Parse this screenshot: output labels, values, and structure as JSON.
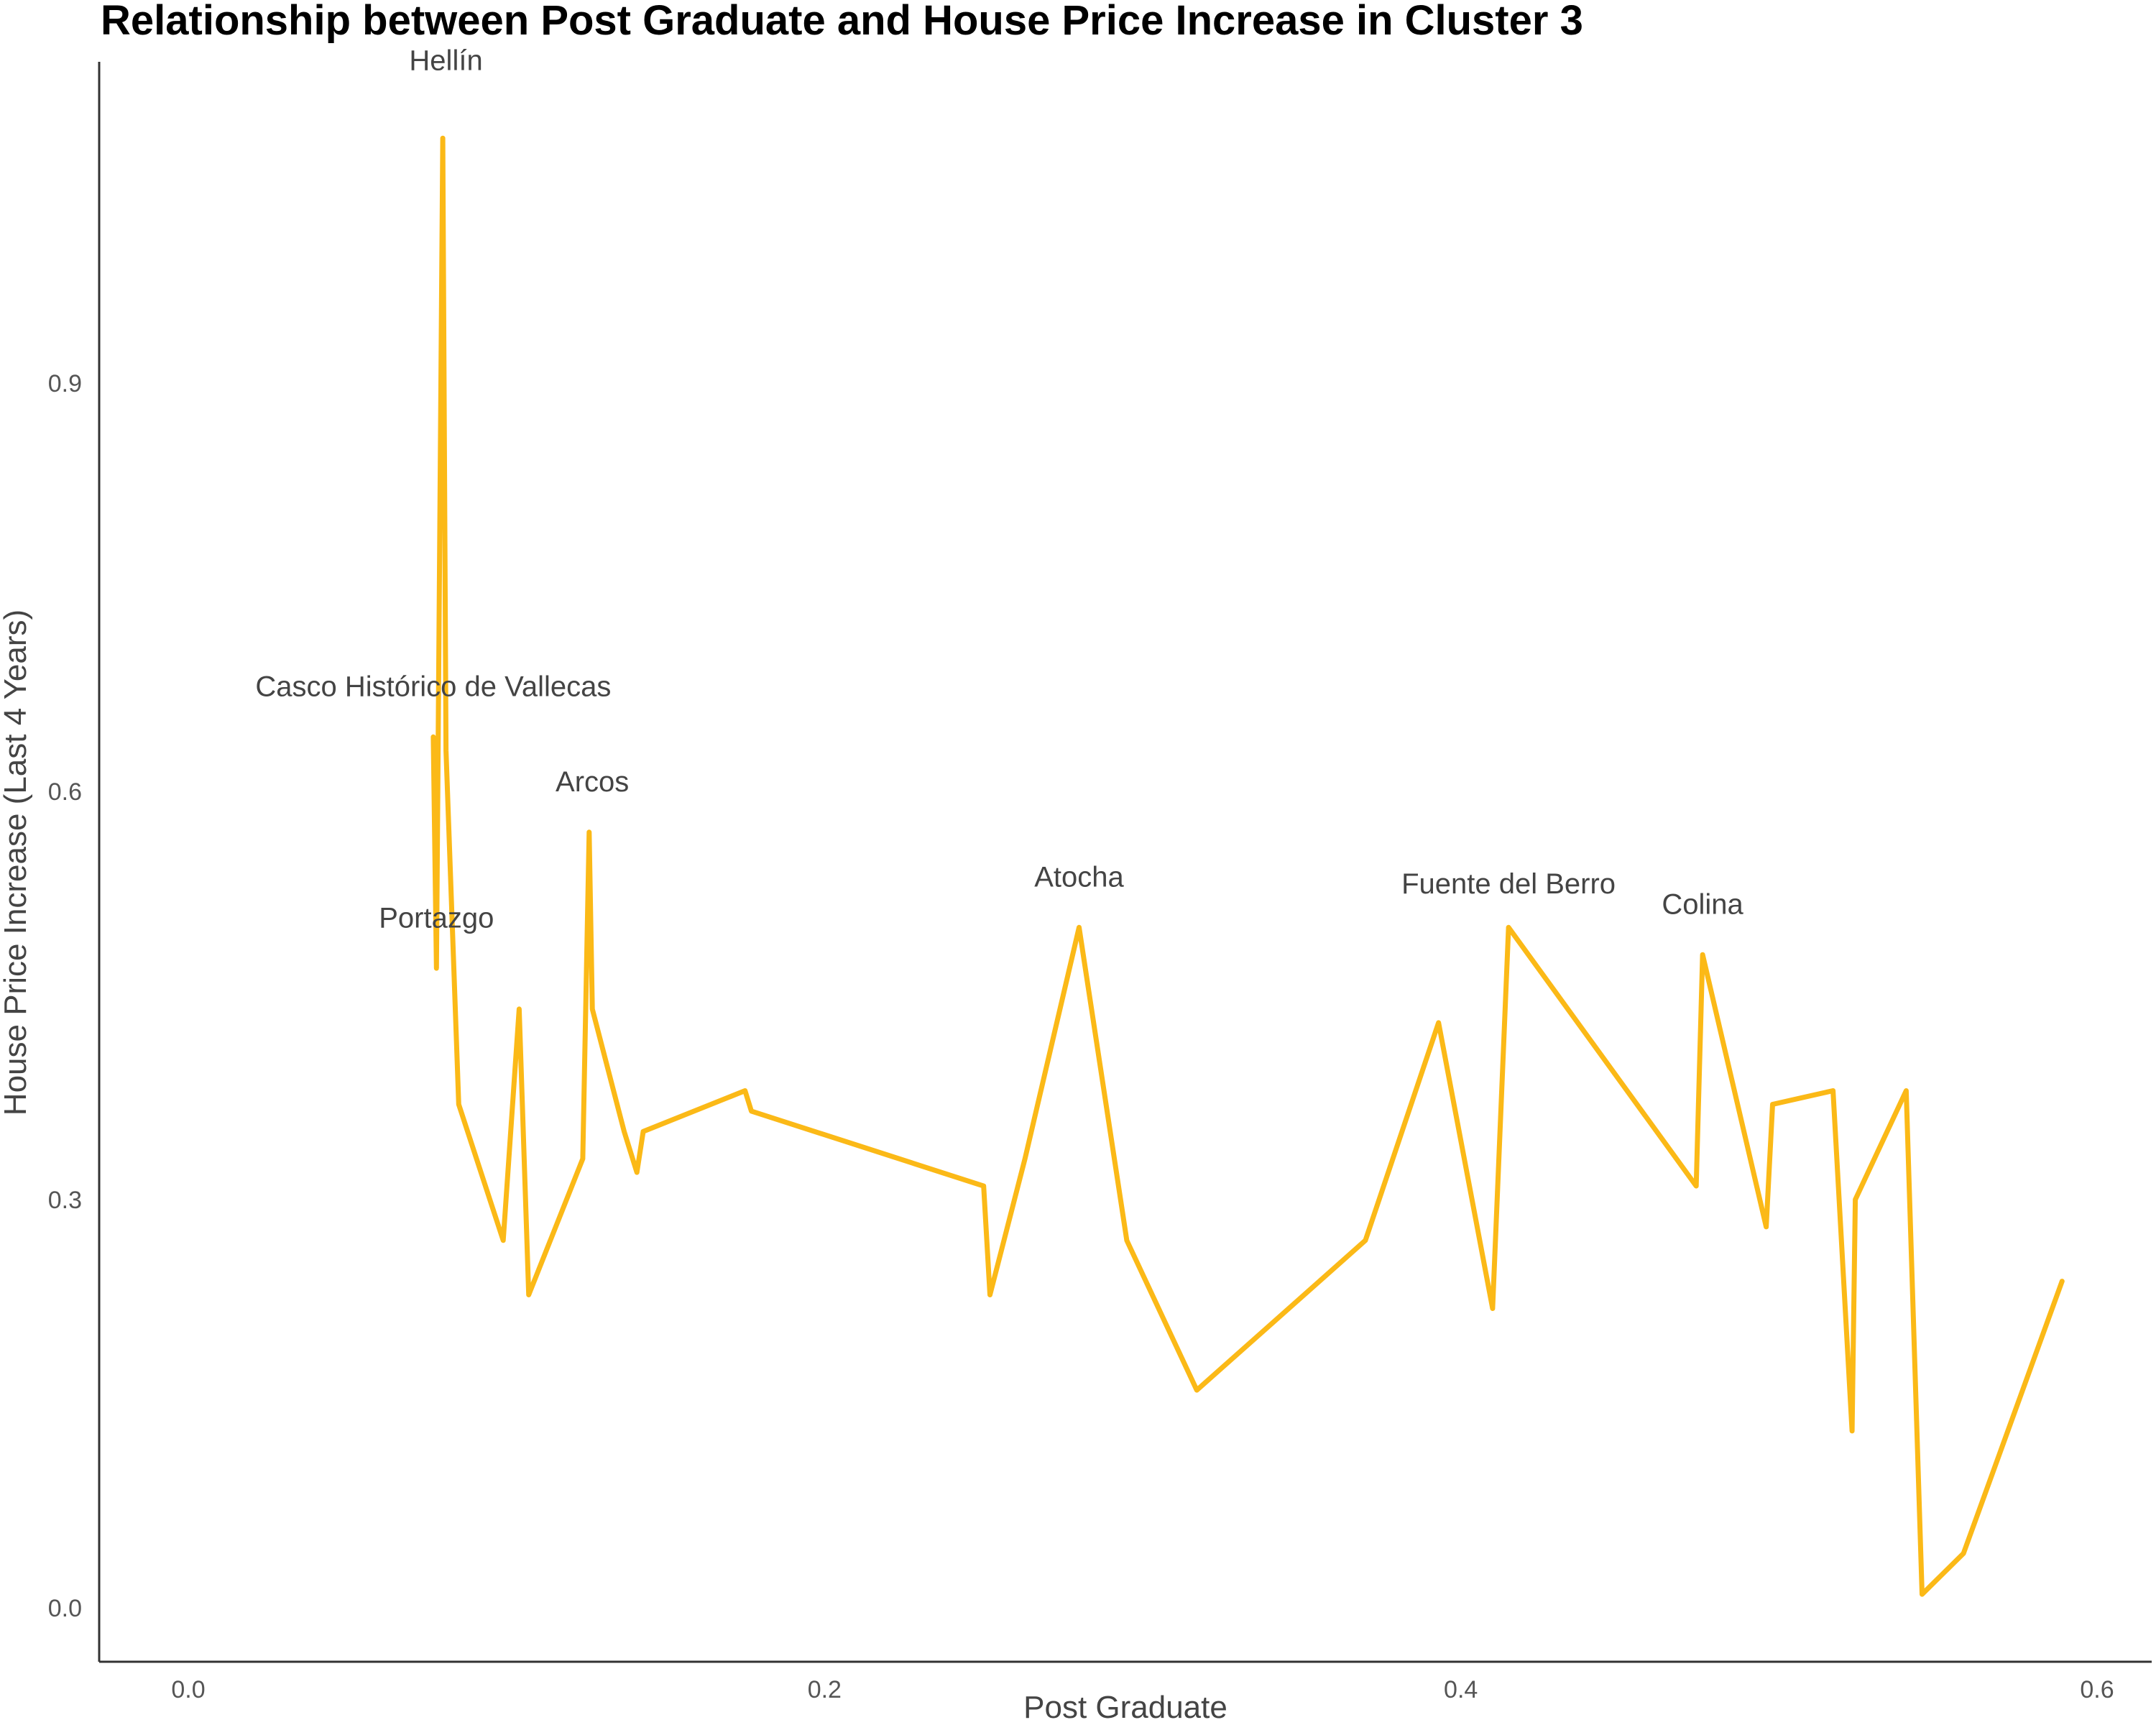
{
  "chart_data": {
    "type": "line",
    "title": "Relationship between Post Graduate and House Price Increase in Cluster 3",
    "xlabel": "Post Graduate",
    "ylabel": "House Price Increase (Last 4 Years)",
    "xlim": [
      -0.03,
      0.6
    ],
    "ylim": [
      -0.04,
      1.13
    ],
    "xticks": [
      0.0,
      0.2,
      0.4,
      0.6
    ],
    "xtick_labels": [
      "0.0",
      "0.2",
      "0.4",
      "0.6"
    ],
    "yticks": [
      0.0,
      0.3,
      0.6,
      0.9
    ],
    "ytick_labels": [
      "0.0",
      "0.3",
      "0.6",
      "0.9"
    ],
    "grid": false,
    "line_color": "#FBB917",
    "series": [
      {
        "x": [
          0.077,
          0.078,
          0.08,
          0.081,
          0.085,
          0.099,
          0.104,
          0.107,
          0.124,
          0.126,
          0.127,
          0.137,
          0.141,
          0.143,
          0.175,
          0.177,
          0.25,
          0.252,
          0.263,
          0.28,
          0.295,
          0.317,
          0.37,
          0.393,
          0.41,
          0.415,
          0.474,
          0.476,
          0.496,
          0.498,
          0.517,
          0.523,
          0.524,
          0.54,
          0.545,
          0.558,
          0.589
        ],
        "y": [
          0.64,
          0.47,
          1.08,
          0.63,
          0.37,
          0.27,
          0.44,
          0.23,
          0.33,
          0.57,
          0.44,
          0.35,
          0.32,
          0.35,
          0.38,
          0.365,
          0.31,
          0.23,
          0.33,
          0.5,
          0.27,
          0.16,
          0.27,
          0.43,
          0.22,
          0.5,
          0.31,
          0.48,
          0.28,
          0.37,
          0.38,
          0.13,
          0.3,
          0.38,
          0.01,
          0.04,
          0.24
        ]
      }
    ],
    "annotations": [
      {
        "text": "Hellín",
        "x": 0.081,
        "y": 1.13
      },
      {
        "text": "Casco Histórico de Vallecas",
        "x": 0.077,
        "y": 0.67
      },
      {
        "text": "Arcos",
        "x": 0.127,
        "y": 0.6
      },
      {
        "text": "Portazgo",
        "x": 0.078,
        "y": 0.5
      },
      {
        "text": "Atocha",
        "x": 0.28,
        "y": 0.53
      },
      {
        "text": "Fuente del Berro",
        "x": 0.415,
        "y": 0.525
      },
      {
        "text": "Colina",
        "x": 0.476,
        "y": 0.51
      }
    ]
  }
}
